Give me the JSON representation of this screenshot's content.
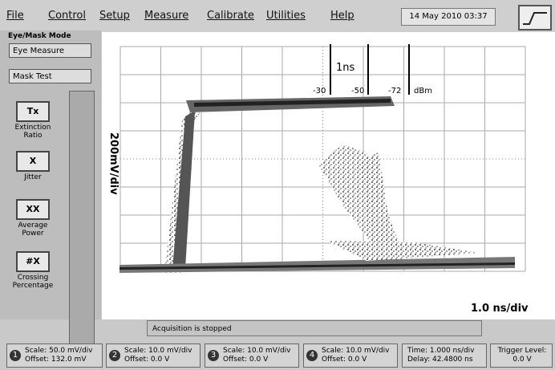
{
  "menu": {
    "items": [
      "File",
      "Control",
      "Setup",
      "Measure",
      "Calibrate",
      "Utilities",
      "Help"
    ],
    "datetime": "14 May 2010  03:37"
  },
  "left_panel": {
    "title": "Eye/Mask Mode",
    "dropdowns": [
      "Eye Measure",
      "Mask Test"
    ],
    "buttons": [
      "Extinction Ratio",
      "Jitter",
      "Average Power",
      "Crossing Percentage"
    ]
  },
  "plot": {
    "time_marker": "1ns",
    "power_labels": [
      "-30",
      "-50",
      "-72"
    ],
    "power_unit": "dBm",
    "y_scale": "200mV/div",
    "x_scale": "1.0 ns/div"
  },
  "status": "Acquisition is stopped",
  "channels": [
    {
      "number": "1",
      "scale": "Scale: 50.0 mV/div",
      "offset": "Offset: 132.0 mV"
    },
    {
      "number": "2",
      "scale": "Scale: 10.0 mV/div",
      "offset": "Offset: 0.0 V"
    },
    {
      "number": "3",
      "scale": "Scale: 10.0 mV/div",
      "offset": "Offset: 0.0 V"
    },
    {
      "number": "4",
      "scale": "Scale: 10.0 mV/div",
      "offset": "Offset: 0.0 V"
    }
  ],
  "timebase": {
    "time": "Time: 1.000 ns/div",
    "delay": "Delay: 42.4800 ns"
  },
  "trigger": {
    "label": "Trigger Level:",
    "value": "0.0 V"
  }
}
